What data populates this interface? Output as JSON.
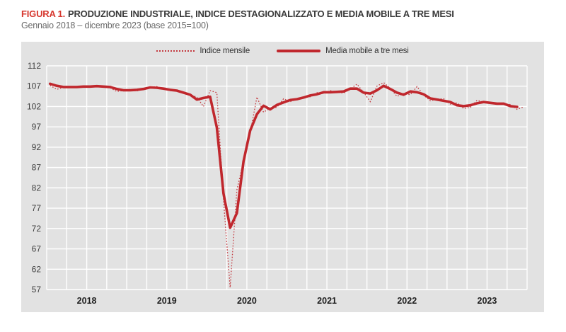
{
  "title": {
    "prefix": "FIGURA 1.",
    "text": "PRODUZIONE INDUSTRIALE, INDICE DESTAGIONALIZZATO E MEDIA MOBILE A TRE MESI"
  },
  "subtitle": "Gennaio 2018 – dicembre 2023 (base 2015=100)",
  "colors": {
    "title_red": "#d6372e",
    "line_red_solid": "#c0272d",
    "line_red_dotted": "#c3393f",
    "panel_bg": "#e2e2e2",
    "grid": "#ffffff",
    "tick_text": "#3f3f3f",
    "year_text": "#1f1f1f"
  },
  "chart_data": {
    "type": "line",
    "title": "Produzione industriale, indice destagionalizzato e media mobile a tre mesi",
    "period": "monthly, gennaio 2018 - dicembre 2023",
    "base": "2015=100",
    "ylim": [
      57,
      112
    ],
    "y_ticks": [
      112,
      107,
      102,
      97,
      92,
      87,
      82,
      77,
      72,
      67,
      62,
      57
    ],
    "year_labels": [
      "2018",
      "2019",
      "2020",
      "2021",
      "2022",
      "2023"
    ],
    "grid": true,
    "legend_position": "top",
    "x_gridline_every_months": 3,
    "series": [
      {
        "name": "Indice mensile",
        "style": "dotted",
        "values": [
          107.2,
          106.2,
          106.7,
          107.0,
          106.7,
          106.9,
          106.8,
          107.0,
          107.1,
          106.6,
          105.7,
          105.9,
          106.2,
          105.8,
          106.4,
          106.8,
          106.9,
          106.2,
          106.2,
          105.9,
          105.5,
          104.9,
          104.3,
          102.0,
          105.9,
          105.4,
          79.0,
          57.5,
          81.5,
          88.5,
          95.5,
          104.3,
          100.6,
          101.6,
          101.8,
          103.9,
          103.2,
          103.8,
          104.3,
          104.4,
          105.4,
          105.2,
          105.9,
          105.5,
          105.3,
          106.3,
          107.5,
          105.5,
          103.2,
          107.0,
          107.9,
          106.5,
          104.5,
          105.2,
          104.9,
          106.9,
          104.8,
          103.4,
          103.8,
          103.9,
          102.6,
          102.9,
          101.5,
          101.8,
          103.5,
          103.1,
          102.7,
          102.9,
          102.6,
          102.5,
          101.3,
          101.9
        ]
      },
      {
        "name": "Media mobile a tre mesi",
        "style": "solid",
        "values": [
          107.6,
          107.1,
          106.8,
          106.8,
          106.8,
          106.9,
          106.9,
          107.0,
          106.9,
          106.8,
          106.3,
          106.0,
          106.0,
          106.1,
          106.3,
          106.7,
          106.6,
          106.4,
          106.1,
          105.9,
          105.4,
          104.9,
          103.7,
          104.1,
          104.4,
          96.8,
          80.6,
          72.2,
          75.8,
          88.5,
          96.1,
          100.1,
          102.2,
          101.3,
          102.4,
          103.0,
          103.6,
          103.8,
          104.2,
          104.7,
          105.0,
          105.5,
          105.5,
          105.6,
          105.7,
          106.4,
          106.4,
          105.4,
          105.2,
          106.0,
          107.1,
          106.3,
          105.4,
          104.9,
          105.7,
          105.5,
          105.0,
          104.0,
          103.7,
          103.4,
          103.1,
          102.3,
          102.1,
          102.3,
          102.8,
          103.1,
          102.9,
          102.7,
          102.7,
          102.1,
          101.9,
          null
        ]
      }
    ]
  }
}
